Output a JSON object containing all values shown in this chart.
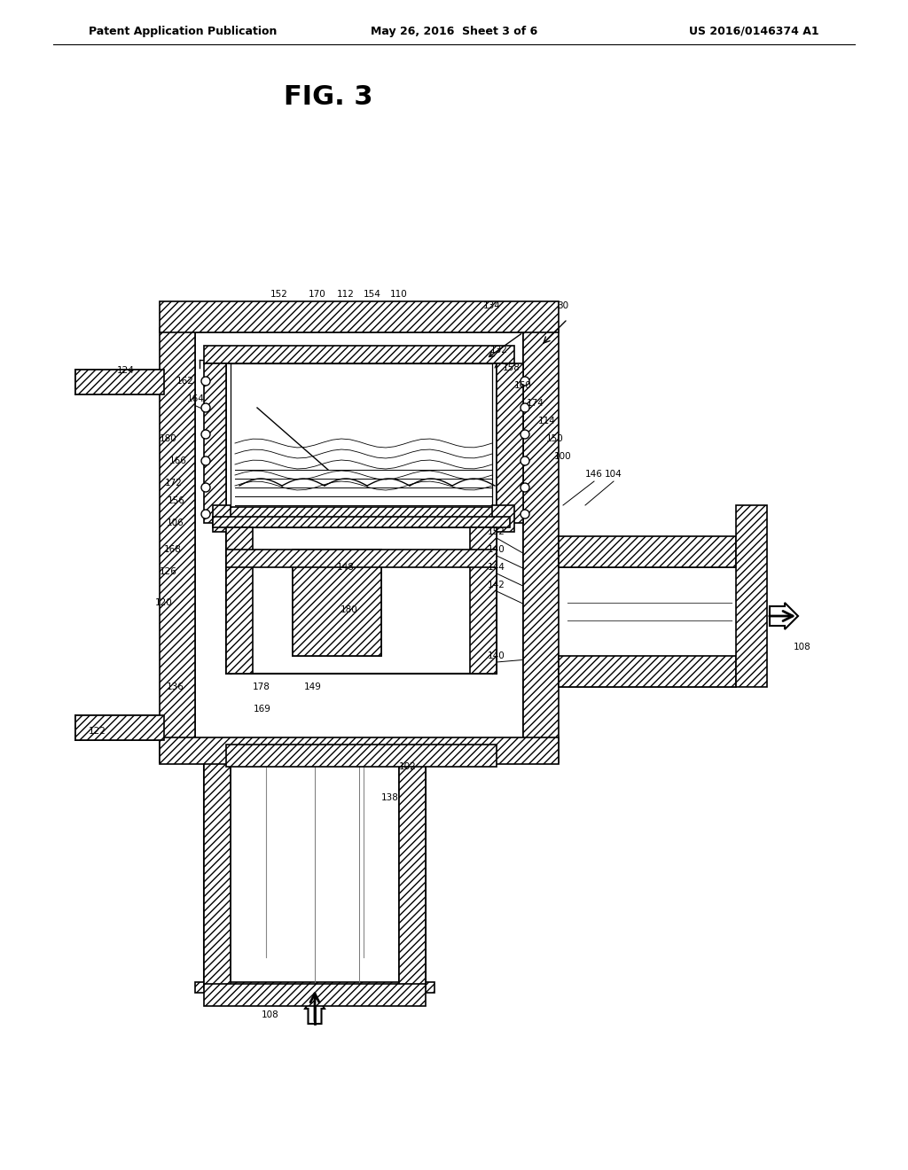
{
  "header_left": "Patent Application Publication",
  "header_center": "May 26, 2016  Sheet 3 of 6",
  "header_right": "US 2016/0146374 A1",
  "fig_label": "FIG. 3",
  "bg_color": "#ffffff",
  "line_color": "#000000",
  "hatch_color": "#000000",
  "ref_number_30": "30",
  "ref_numbers": [
    "100",
    "102",
    "104",
    "106",
    "108",
    "110",
    "112",
    "114",
    "120",
    "122",
    "124",
    "126",
    "132",
    "134",
    "136",
    "138",
    "140",
    "142",
    "144",
    "146",
    "148",
    "149",
    "150",
    "152",
    "154",
    "156",
    "158",
    "160",
    "162",
    "164",
    "166",
    "168",
    "169",
    "170",
    "172",
    "174",
    "178",
    "180"
  ]
}
